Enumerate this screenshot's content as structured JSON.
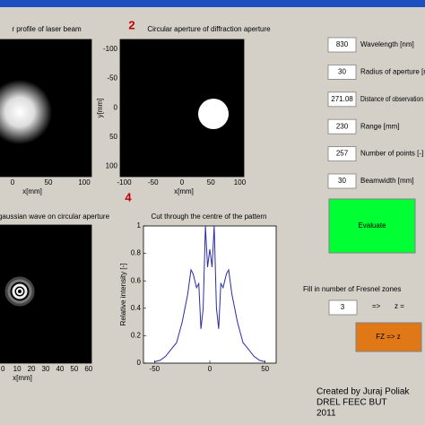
{
  "panels": [
    {
      "title": "r profile of laser beam",
      "xlabel": "x[mm]",
      "xlim": [
        -17.5,
        110
      ],
      "xticks": [
        0,
        50,
        100
      ]
    },
    {
      "number": "2",
      "title": "Circular aperture of diffraction aperture",
      "xlabel": "x[mm]",
      "xlim": [
        -107,
        107
      ],
      "xticks": [
        -100,
        -50,
        0,
        50,
        100
      ],
      "ylabel": "y[mm]",
      "ylim": [
        -117,
        118
      ],
      "yticks": [
        -100,
        -50,
        0,
        50,
        100
      ]
    },
    {
      "title": "gaussian wave on circular aperture",
      "xlabel": "x[mm]",
      "xlim": [
        -2,
        62
      ],
      "xticks": [
        0,
        10,
        20,
        30,
        40,
        50,
        60
      ]
    },
    {
      "number": "4",
      "title": "Cut through the centre of the pattern",
      "xlim": [
        -60,
        60
      ],
      "xticks": [
        -50,
        0,
        50
      ],
      "ylabel": "Relative intensity [-]",
      "ylim": [
        0,
        1
      ],
      "yticks": [
        0,
        0.2,
        0.4,
        0.6,
        0.8,
        1
      ],
      "line": {
        "color": "#2b2ba8",
        "x": [
          -50,
          -45,
          -40,
          -35,
          -30,
          -25,
          -20,
          -17,
          -15,
          -12,
          -10,
          -8,
          -6,
          -4,
          -2,
          0,
          2,
          4,
          6,
          8,
          10,
          12,
          15,
          17,
          20,
          25,
          30,
          35,
          40,
          45,
          50
        ],
        "y": [
          0.01,
          0.02,
          0.05,
          0.1,
          0.15,
          0.3,
          0.5,
          0.68,
          0.65,
          0.55,
          0.58,
          0.25,
          0.4,
          1,
          0.7,
          0.83,
          0.7,
          1,
          0.4,
          0.25,
          0.58,
          0.55,
          0.65,
          0.68,
          0.5,
          0.3,
          0.15,
          0.1,
          0.05,
          0.02,
          0.01
        ]
      }
    }
  ],
  "inputs": [
    {
      "value": 830,
      "label": "Wavelength [nm]"
    },
    {
      "value": 30,
      "label": "Radius of aperture [mm]"
    },
    {
      "value": 271.08,
      "label": "Distance of observation"
    },
    {
      "value": 230,
      "label": "Range  [mm]"
    },
    {
      "value": 257,
      "label": "Number of points  [-]"
    },
    {
      "value": 30,
      "label": "Beamwidth  [mm]"
    }
  ],
  "evaluate_button": "Evaluate",
  "fresnel": {
    "prompt": "Fill in number of Fresnel zones",
    "value": 3,
    "arrow": "=>",
    "result": "z ="
  },
  "fz_button": "FZ => z",
  "credits": [
    "Created by Juraj Poliak",
    "DREL FEEC BUT",
    "2011"
  ]
}
